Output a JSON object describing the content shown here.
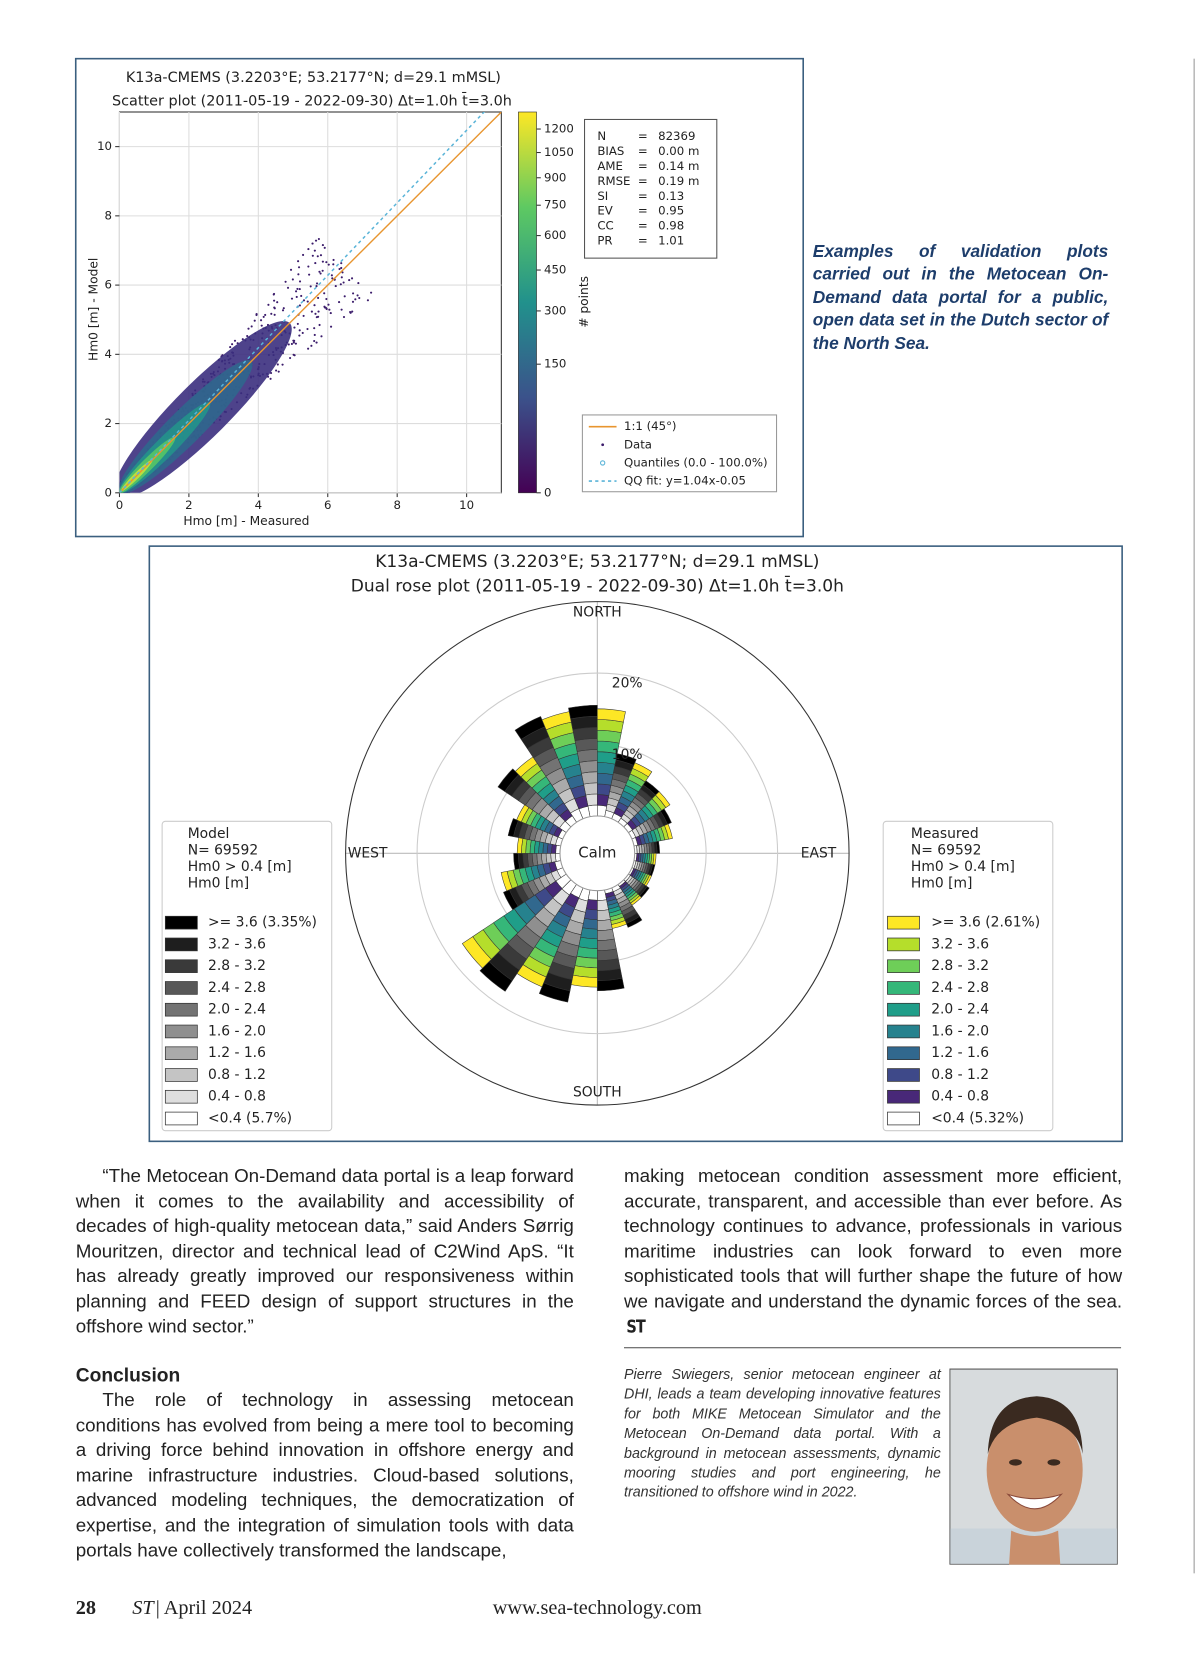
{
  "figure1": {
    "title": [
      "K13a-CMEMS (3.2203°E; 53.2177°N; d=29.1 mMSL)",
      "Scatter plot (2011-05-19 - 2022-09-30) Δt=1.0h t̄=3.0h"
    ],
    "xlabel": "Hmo [m] - Measured",
    "ylabel": "Hm0 [m] - Model",
    "cbar_label": "# points",
    "xlim": [
      0,
      11
    ],
    "ylim": [
      0,
      11
    ],
    "xticks": [
      0,
      2,
      4,
      6,
      8,
      10
    ],
    "yticks": [
      0,
      2,
      4,
      6,
      8,
      10
    ],
    "cbar_lim": [
      0,
      1315
    ],
    "cbar_ticks": [
      0,
      150,
      300,
      450,
      600,
      750,
      900,
      1050,
      1200
    ],
    "stats": [
      {
        "name": "N",
        "sep": "=",
        "value": "82369"
      },
      {
        "name": "BIAS",
        "sep": "=",
        "value": "0.00 m"
      },
      {
        "name": "AME",
        "sep": "=",
        "value": "0.14 m"
      },
      {
        "name": "RMSE",
        "sep": "=",
        "value": "0.19 m"
      },
      {
        "name": "SI",
        "sep": "=",
        "value": "0.13"
      },
      {
        "name": "EV",
        "sep": "=",
        "value": "0.95"
      },
      {
        "name": "CC",
        "sep": "=",
        "value": "0.98"
      },
      {
        "name": "PR",
        "sep": "=",
        "value": "1.01"
      }
    ],
    "legend": [
      "1:1 (45°)",
      "Data",
      "Quantiles (0.0 - 100.0%)",
      "QQ fit: y=1.04x-0.05"
    ]
  },
  "caption": "Examples of validation plots carried out in the Metocean On-Demand data portal for a public, open data set in the Dutch sector of the North Sea.",
  "figure2": {
    "title": [
      "K13a-CMEMS (3.2203°E; 53.2177°N; d=29.1 mMSL)",
      "Dual rose plot (2011-05-19 - 2022-09-30) Δt=1.0h t̄=3.0h"
    ],
    "north": "NORTH",
    "south": "SOUTH",
    "east": "EAST",
    "west": "WEST",
    "calm": "Calm",
    "rlim": [
      0,
      30
    ],
    "rings": [
      {
        "value": 10,
        "label": "10%"
      },
      {
        "value": 20,
        "label": "20%"
      },
      30
    ],
    "model": {
      "header": [
        "Model",
        "N= 69592",
        "Hm0 > 0.4 [m]",
        "Hm0 [m]"
      ],
      "bins": [
        ">= 3.6 (3.35%)",
        "3.2 - 3.6",
        "2.8 - 3.2",
        "2.4 - 2.8",
        "2.0 - 2.4",
        "1.6 - 2.0",
        "1.2 - 1.6",
        "0.8 - 1.2",
        "0.4 - 0.8",
        "<0.4 (5.7%)"
      ],
      "colors": [
        "#000000",
        "#1e1e1e",
        "#3a3a3a",
        "#585858",
        "#737373",
        "#8f8f8f",
        "#aaaaaa",
        "#c4c4c4",
        "#dedede",
        "#ffffff"
      ],
      "sectors": [
        15.5,
        9,
        7,
        6,
        3.5,
        3,
        3.5,
        6,
        14,
        16,
        18,
        9,
        6.5,
        7.5,
        11.5,
        15.5
      ]
    },
    "measured": {
      "header": [
        "Measured",
        "N= 69592",
        "Hm0 > 0.4 [m]",
        "Hm0 [m]"
      ],
      "bins": [
        ">= 3.6 (2.61%)",
        "3.2 - 3.6",
        "2.8 - 3.2",
        "2.4 - 2.8",
        "2.0 - 2.4",
        "1.6 - 2.0",
        "1.2 - 1.6",
        "0.8 - 1.2",
        "0.4 - 0.8",
        "<0.4 (5.32%)"
      ],
      "colors": [
        "#fde725",
        "#b5de2b",
        "#6ece58",
        "#35b779",
        "#1f9e89",
        "#26828e",
        "#31688e",
        "#3e4989",
        "#482878",
        "#ffffff"
      ],
      "sectors": [
        15,
        8.5,
        7,
        5.5,
        3,
        3,
        3.5,
        5.5,
        13.5,
        15,
        17.5,
        8.5,
        6,
        7,
        11,
        15
      ]
    }
  },
  "body": {
    "p1": "“The Metocean On-Demand data portal is a leap forward when it comes to the availability and accessibility of decades of high-quality metocean data,” said Anders Sørrig Mouritzen, director and technical lead of C2Wind ApS. “It has already greatly improved our responsiveness within planning and FEED design of support structures in the offshore wind sector.”",
    "heading": "Conclusion",
    "p2": "The role of technology in assessing metocean conditions has evolved from being a mere tool to becoming a driving force behind innovation in offshore energy and marine infrastructure industries. Cloud-based solutions, advanced modeling techniques, the democratization of expertise, and the integration of simulation tools with data portals have collectively transformed the landscape,",
    "p3": "making metocean condition assessment more efficient, accurate, transparent, and accessible than ever before. As technology continues to advance, professionals in various maritime industries can look forward to even more sophisticated tools that will further shape the future of how we navigate and understand the dynamic forces of the sea.",
    "end_mark": "ST"
  },
  "bio": "Pierre Swiegers, senior metocean engineer at DHI, leads a team developing innovative features for both MIKE Metocean Simulator and the Metocean On-Demand data portal. With a background in metocean assessments, dynamic mooring studies and port engineering, he transitioned to offshore wind in 2022.",
  "footer": {
    "page": "28",
    "magazine": "ST",
    "date": "| April 2024",
    "url": "www.sea-technology.com"
  }
}
